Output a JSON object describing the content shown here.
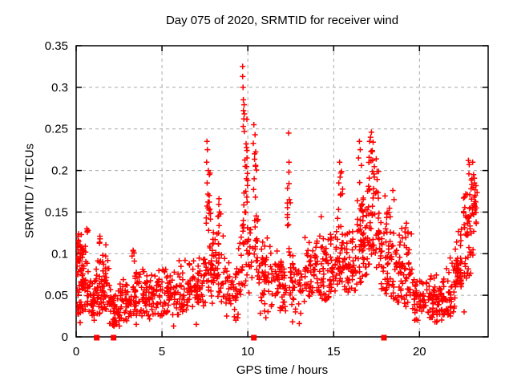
{
  "chart_data": {
    "type": "scatter",
    "title": "Day 075 of 2020, SRMTID for receiver wind",
    "xlabel": "GPS time / hours",
    "ylabel": "SRMTID / TECUs",
    "xlim": [
      0,
      24
    ],
    "ylim": [
      0,
      0.35
    ],
    "xticks": [
      0,
      5,
      10,
      15,
      20
    ],
    "yticks": [
      0,
      0.05,
      0.1,
      0.15,
      0.2,
      0.25,
      0.3,
      0.35
    ],
    "xtick_labels": [
      "0",
      "5",
      "10",
      "15",
      "20"
    ],
    "ytick_labels": [
      "0",
      "0.05",
      "0.1",
      "0.15",
      "0.2",
      "0.25",
      "0.3",
      "0.35"
    ],
    "grid": "dashed, at every major tick, both axes",
    "legend": "none",
    "marker": "plus",
    "colors": {
      "marker": "#ff0000",
      "grid": "#a9a9a9",
      "axis": "#000000",
      "background": "#ffffff",
      "text": "#000000"
    },
    "series_name": "SRMTID",
    "baseline_square_markers_x": [
      1.2,
      2.18,
      10.35,
      17.93
    ],
    "peak_points": [
      [
        9.7,
        0.325
      ],
      [
        9.7,
        0.313
      ],
      [
        9.72,
        0.3
      ],
      [
        9.74,
        0.285
      ],
      [
        9.78,
        0.279
      ],
      [
        9.75,
        0.272
      ],
      [
        9.8,
        0.268
      ],
      [
        9.77,
        0.262
      ],
      [
        9.73,
        0.253
      ],
      [
        9.79,
        0.247
      ],
      [
        9.9,
        0.232
      ],
      [
        9.95,
        0.215
      ],
      [
        9.85,
        0.205
      ],
      [
        9.92,
        0.19
      ],
      [
        9.88,
        0.175
      ],
      [
        9.96,
        0.162
      ],
      [
        9.83,
        0.15
      ],
      [
        9.74,
        0.14
      ],
      [
        10.35,
        0.255
      ],
      [
        10.42,
        0.243
      ],
      [
        10.4,
        0.22
      ],
      [
        10.45,
        0.205
      ],
      [
        10.37,
        0.19
      ],
      [
        10.44,
        0.168
      ],
      [
        12.38,
        0.245
      ],
      [
        12.4,
        0.21
      ],
      [
        12.39,
        0.198
      ],
      [
        12.42,
        0.165
      ],
      [
        12.37,
        0.135
      ],
      [
        7.62,
        0.235
      ],
      [
        7.65,
        0.225
      ],
      [
        7.6,
        0.21
      ],
      [
        7.7,
        0.2
      ],
      [
        7.63,
        0.185
      ],
      [
        7.75,
        0.17
      ],
      [
        7.68,
        0.155
      ],
      [
        7.58,
        0.143
      ],
      [
        7.72,
        0.128
      ],
      [
        8.32,
        0.166
      ],
      [
        8.35,
        0.15
      ],
      [
        15.35,
        0.21
      ],
      [
        15.42,
        0.197
      ],
      [
        15.3,
        0.185
      ],
      [
        15.5,
        0.172
      ],
      [
        16.5,
        0.235
      ],
      [
        16.55,
        0.225
      ],
      [
        16.45,
        0.215
      ],
      [
        16.62,
        0.206
      ],
      [
        17.2,
        0.246
      ],
      [
        17.15,
        0.24
      ],
      [
        17.3,
        0.234
      ],
      [
        18.45,
        0.176
      ],
      [
        18.52,
        0.165
      ],
      [
        22.85,
        0.212
      ],
      [
        22.9,
        0.207
      ],
      [
        22.88,
        0.196
      ],
      [
        23.1,
        0.21
      ],
      [
        23.15,
        0.195
      ],
      [
        23.2,
        0.185
      ],
      [
        23.25,
        0.17
      ],
      [
        23.3,
        0.155
      ],
      [
        0.62,
        0.13
      ],
      [
        1.38,
        0.121
      ],
      [
        3.32,
        0.104
      ]
    ],
    "low_points": [
      [
        0.23,
        0.017
      ],
      [
        1.05,
        0.02
      ],
      [
        1.95,
        0.016
      ],
      [
        2.2,
        0.013
      ],
      [
        2.35,
        0.015
      ],
      [
        2.52,
        0.013
      ],
      [
        3.5,
        0.015
      ],
      [
        5.68,
        0.013
      ],
      [
        7.0,
        0.015
      ],
      [
        9.3,
        0.02
      ],
      [
        11.05,
        0.023
      ],
      [
        12.6,
        0.018
      ],
      [
        13.0,
        0.016
      ],
      [
        19.9,
        0.02
      ],
      [
        20.9,
        0.018
      ],
      [
        22.6,
        0.03
      ]
    ],
    "density_bands_format": [
      "x_start_hours",
      "x_end_hours",
      "point_count",
      "y_min_TECUs",
      "y_max_TECUs",
      "y_mode_TECUs"
    ],
    "density_bands": [
      [
        0.02,
        0.3,
        40,
        0.03,
        0.125,
        0.08
      ],
      [
        0.05,
        0.45,
        8,
        0.014,
        0.035,
        0.025
      ],
      [
        0.28,
        0.72,
        45,
        0.025,
        0.12,
        0.065
      ],
      [
        0.6,
        0.7,
        3,
        0.125,
        0.132,
        0.128
      ],
      [
        0.72,
        1.12,
        30,
        0.02,
        0.075,
        0.045
      ],
      [
        1.12,
        1.52,
        30,
        0.025,
        0.105,
        0.055
      ],
      [
        1.3,
        1.45,
        3,
        0.108,
        0.122,
        0.115
      ],
      [
        1.52,
        1.95,
        40,
        0.03,
        0.118,
        0.065
      ],
      [
        1.95,
        2.45,
        35,
        0.012,
        0.06,
        0.035
      ],
      [
        2.45,
        3.2,
        50,
        0.018,
        0.07,
        0.042
      ],
      [
        3.2,
        4.0,
        50,
        0.025,
        0.095,
        0.05
      ],
      [
        3.25,
        3.45,
        4,
        0.09,
        0.105,
        0.097
      ],
      [
        4.0,
        5.0,
        60,
        0.02,
        0.08,
        0.048
      ],
      [
        5.0,
        6.0,
        60,
        0.025,
        0.09,
        0.052
      ],
      [
        6.0,
        7.0,
        60,
        0.03,
        0.1,
        0.058
      ],
      [
        7.0,
        7.55,
        35,
        0.035,
        0.11,
        0.065
      ],
      [
        7.55,
        7.85,
        14,
        0.1,
        0.23,
        0.15
      ],
      [
        7.55,
        7.9,
        15,
        0.048,
        0.1,
        0.075
      ],
      [
        7.85,
        8.6,
        50,
        0.04,
        0.13,
        0.08
      ],
      [
        8.2,
        8.45,
        5,
        0.128,
        0.165,
        0.14
      ],
      [
        8.6,
        9.45,
        45,
        0.02,
        0.095,
        0.055
      ],
      [
        9.45,
        9.7,
        18,
        0.04,
        0.125,
        0.08
      ],
      [
        9.68,
        10.05,
        16,
        0.13,
        0.3,
        0.17
      ],
      [
        9.7,
        10.15,
        22,
        0.05,
        0.13,
        0.09
      ],
      [
        10.15,
        10.6,
        22,
        0.05,
        0.155,
        0.1
      ],
      [
        10.3,
        10.5,
        6,
        0.16,
        0.25,
        0.2
      ],
      [
        10.6,
        11.5,
        55,
        0.028,
        0.125,
        0.068
      ],
      [
        11.5,
        12.25,
        50,
        0.03,
        0.11,
        0.06
      ],
      [
        12.3,
        12.5,
        8,
        0.12,
        0.24,
        0.165
      ],
      [
        12.4,
        13.3,
        45,
        0.028,
        0.12,
        0.065
      ],
      [
        13.3,
        14.2,
        55,
        0.048,
        0.135,
        0.085
      ],
      [
        14.2,
        15.05,
        55,
        0.04,
        0.145,
        0.082
      ],
      [
        15.05,
        15.6,
        40,
        0.055,
        0.16,
        0.095
      ],
      [
        15.2,
        15.55,
        5,
        0.165,
        0.205,
        0.185
      ],
      [
        15.6,
        16.35,
        50,
        0.05,
        0.135,
        0.085
      ],
      [
        16.35,
        17.0,
        60,
        0.06,
        0.2,
        0.11
      ],
      [
        17.0,
        17.65,
        55,
        0.08,
        0.235,
        0.14
      ],
      [
        17.05,
        17.45,
        8,
        0.205,
        0.245,
        0.222
      ],
      [
        17.65,
        18.3,
        50,
        0.05,
        0.18,
        0.1
      ],
      [
        18.3,
        19.1,
        50,
        0.04,
        0.145,
        0.08
      ],
      [
        19.1,
        19.6,
        35,
        0.035,
        0.15,
        0.075
      ],
      [
        19.6,
        20.45,
        50,
        0.02,
        0.08,
        0.045
      ],
      [
        20.45,
        21.3,
        60,
        0.016,
        0.075,
        0.042
      ],
      [
        21.3,
        22.05,
        50,
        0.025,
        0.1,
        0.055
      ],
      [
        22.05,
        22.55,
        40,
        0.045,
        0.135,
        0.08
      ],
      [
        22.55,
        23.0,
        40,
        0.07,
        0.19,
        0.12
      ],
      [
        23.0,
        23.38,
        30,
        0.09,
        0.212,
        0.15
      ]
    ]
  }
}
